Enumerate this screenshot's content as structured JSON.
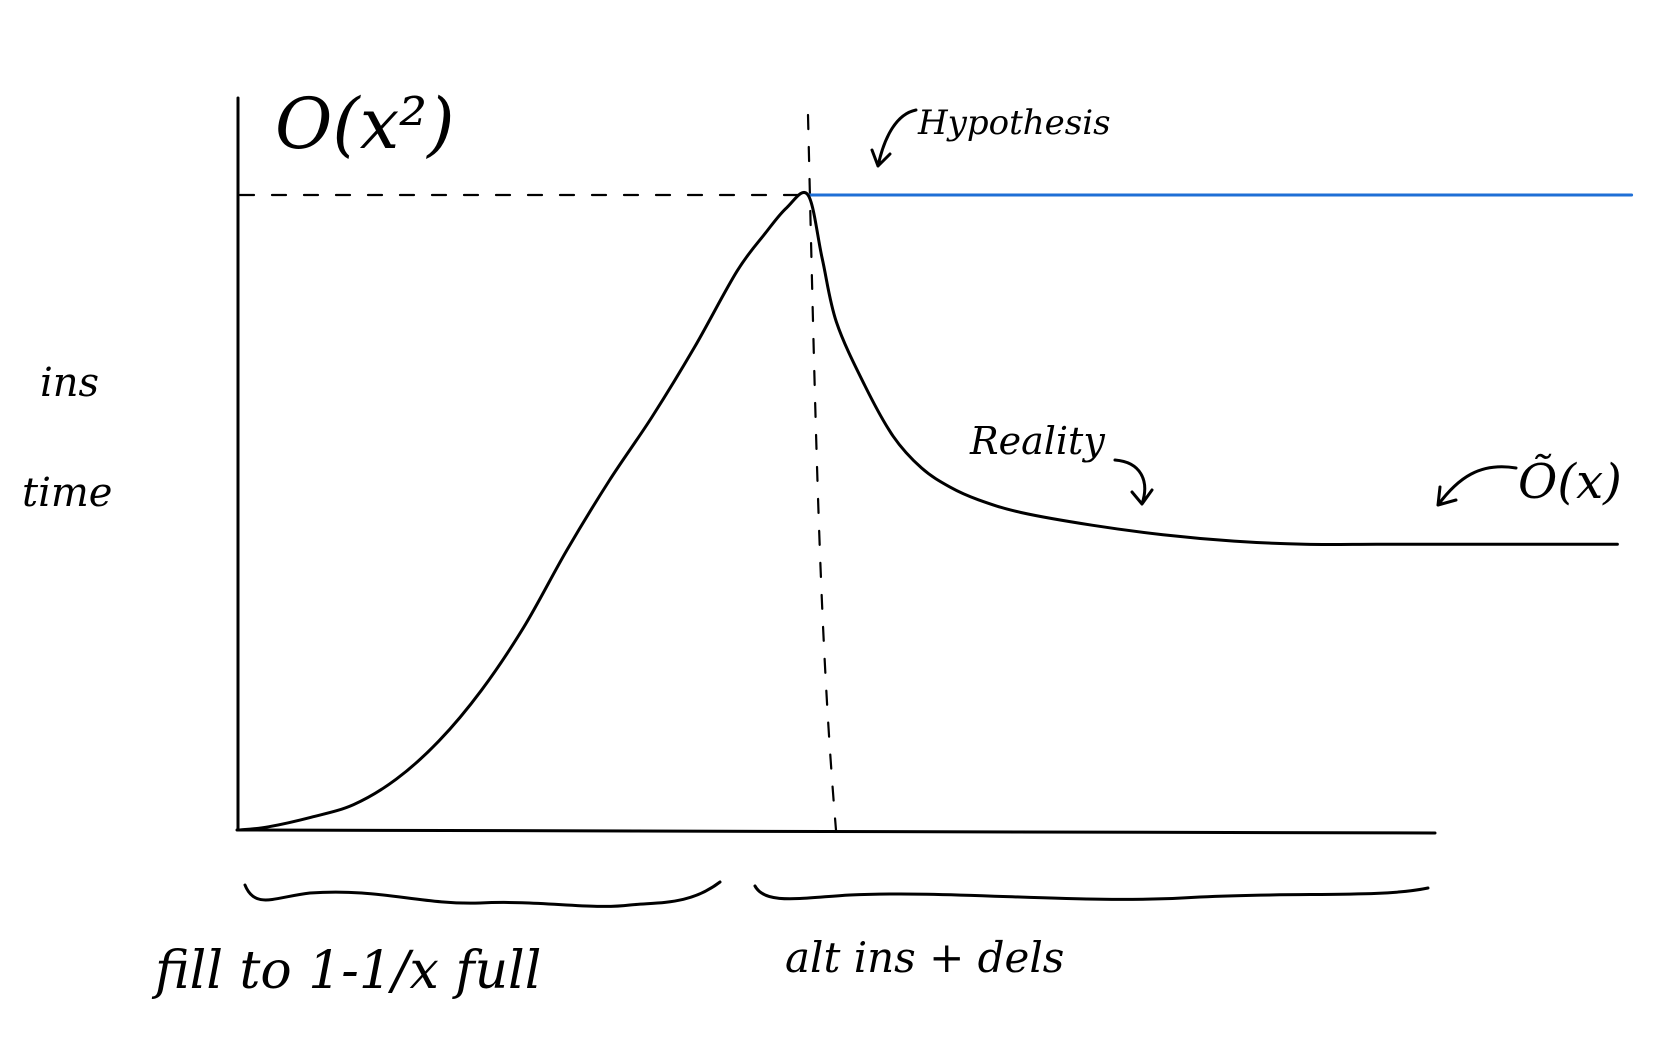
{
  "colors": {
    "ink": "#000000",
    "hypothesis": "#1f6fd6",
    "background": "#ffffff"
  },
  "chart_data": {
    "type": "line",
    "title": "",
    "ylabel": "ins time",
    "y_scale_labels": {
      "peak": "O(x²)",
      "plateau": "Õ(x)"
    },
    "regions": [
      {
        "label": "fill to 1-1/x full",
        "x_range": [
          0,
          0.4
        ]
      },
      {
        "label": "alt ins + dels",
        "x_range": [
          0.4,
          1.0
        ]
      }
    ],
    "x_range": [
      0,
      1.0
    ],
    "y_range": [
      0,
      1.0
    ],
    "grid": false,
    "series": [
      {
        "name": "Reality",
        "color": "#000000",
        "x": [
          0.0,
          0.02,
          0.05,
          0.08,
          0.11,
          0.14,
          0.17,
          0.2,
          0.23,
          0.26,
          0.29,
          0.32,
          0.35,
          0.37,
          0.385,
          0.4,
          0.41,
          0.42,
          0.44,
          0.46,
          0.48,
          0.5,
          0.52,
          0.55,
          0.6,
          0.65,
          0.7,
          0.75,
          0.8,
          0.85,
          0.9,
          0.95,
          0.97
        ],
        "y": [
          0.0,
          0.005,
          0.02,
          0.04,
          0.08,
          0.14,
          0.22,
          0.32,
          0.44,
          0.55,
          0.65,
          0.76,
          0.88,
          0.94,
          0.98,
          1.0,
          0.9,
          0.8,
          0.7,
          0.62,
          0.57,
          0.54,
          0.52,
          0.5,
          0.48,
          0.465,
          0.455,
          0.45,
          0.45,
          0.45,
          0.45,
          0.45,
          0.45
        ]
      },
      {
        "name": "Hypothesis",
        "color": "#1f6fd6",
        "x": [
          0.4,
          0.98
        ],
        "y": [
          1.0,
          1.0
        ]
      }
    ],
    "reference_lines": [
      {
        "orientation": "horizontal",
        "style": "dashed",
        "y": 1.0,
        "x_range": [
          0,
          0.4
        ]
      },
      {
        "orientation": "vertical",
        "style": "dashed",
        "x": 0.4
      }
    ],
    "annotations": [
      {
        "text": "Hypothesis",
        "arrow": true
      },
      {
        "text": "Reality",
        "arrow": true
      }
    ]
  }
}
